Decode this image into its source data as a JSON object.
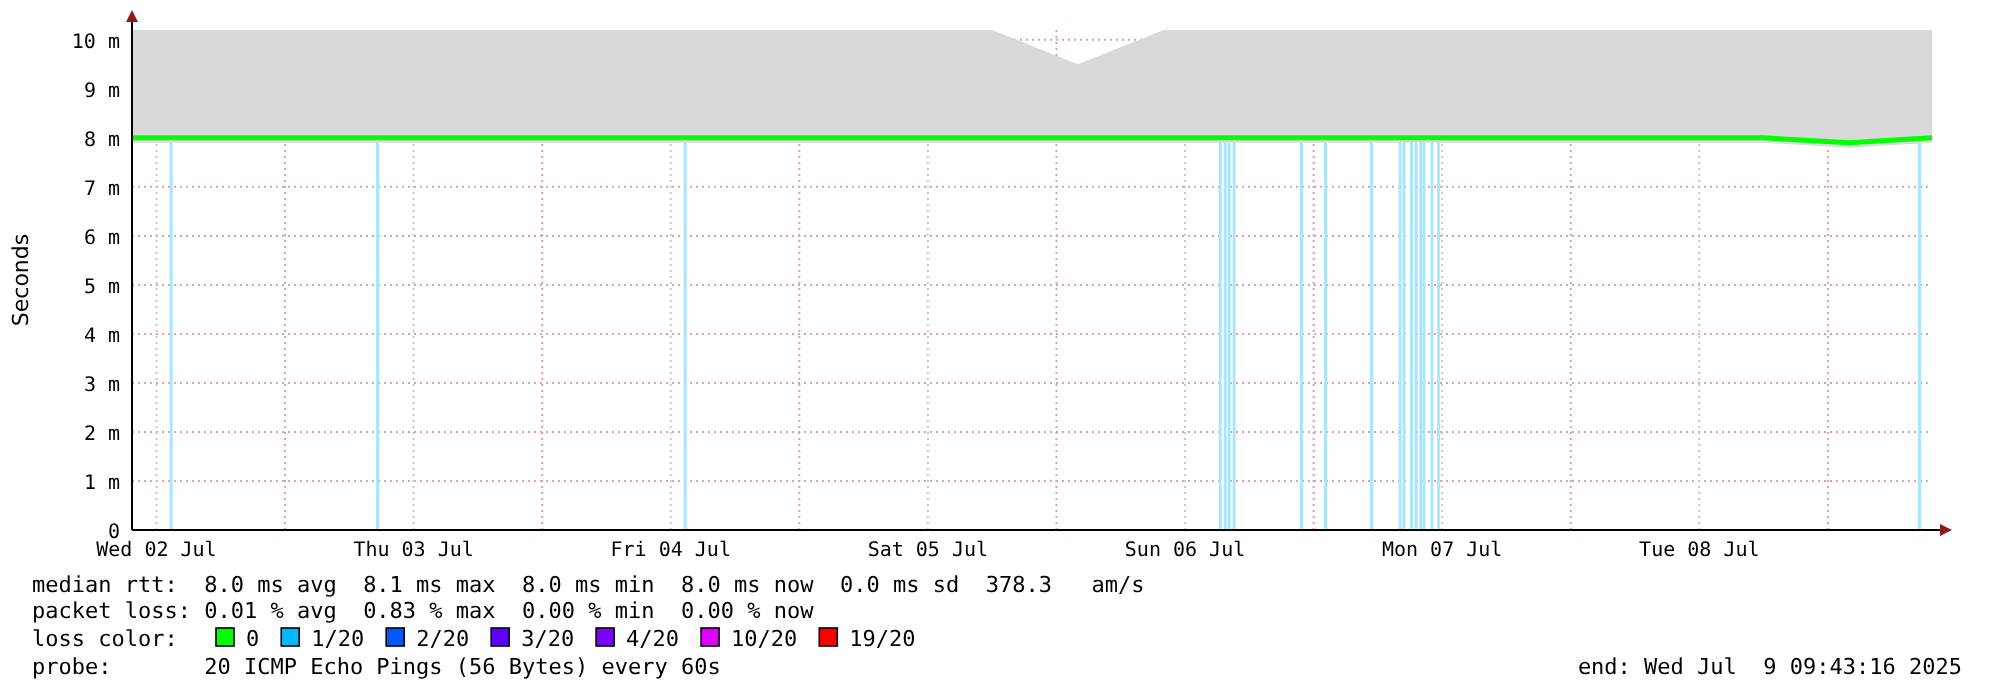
{
  "chart_data": {
    "type": "line",
    "ylabel": "Seconds",
    "legend_title": "loss color:",
    "legend": "bottom",
    "grid": true,
    "xlim": [
      "2025-07-02T09:43",
      "2025-07-09T09:43"
    ],
    "xticks": [
      {
        "value": "2025-07-02T12:00",
        "label": "Wed 02 Jul"
      },
      {
        "value": "2025-07-03T00:00",
        "label": null
      },
      {
        "value": "2025-07-03T12:00",
        "label": "Thu 03 Jul"
      },
      {
        "value": "2025-07-04T00:00",
        "label": null
      },
      {
        "value": "2025-07-04T12:00",
        "label": "Fri 04 Jul"
      },
      {
        "value": "2025-07-05T00:00",
        "label": null
      },
      {
        "value": "2025-07-05T12:00",
        "label": "Sat 05 Jul"
      },
      {
        "value": "2025-07-06T00:00",
        "label": null
      },
      {
        "value": "2025-07-06T12:00",
        "label": "Sun 06 Jul"
      },
      {
        "value": "2025-07-07T00:00",
        "label": null
      },
      {
        "value": "2025-07-07T12:00",
        "label": "Mon 07 Jul"
      },
      {
        "value": "2025-07-08T00:00",
        "label": null
      },
      {
        "value": "2025-07-08T12:00",
        "label": "Tue 08 Jul"
      },
      {
        "value": "2025-07-09T00:00",
        "label": null
      }
    ],
    "ylim": [
      0,
      10.2
    ],
    "yticks": [
      0,
      {
        "value": 1,
        "label": "1 m"
      },
      {
        "value": 2,
        "label": "2 m"
      },
      {
        "value": 3,
        "label": "3 m"
      },
      {
        "value": 4,
        "label": "4 m"
      },
      {
        "value": 5,
        "label": "5 m"
      },
      {
        "value": 6,
        "label": "6 m"
      },
      {
        "value": 7,
        "label": "7 m"
      },
      {
        "value": 8,
        "label": "8 m"
      },
      {
        "value": 9,
        "label": "9 m"
      },
      {
        "value": 10,
        "label": "10 m"
      }
    ],
    "series": [
      {
        "name": "0",
        "color": "#00ff00",
        "x": [
          "2025-07-02T09:43",
          "2025-07-02T18:00",
          "2025-07-03T02:00",
          "2025-07-03T10:00",
          "2025-07-03T18:00",
          "2025-07-04T02:00",
          "2025-07-04T10:00",
          "2025-07-04T18:00",
          "2025-07-05T02:00",
          "2025-07-05T10:00",
          "2025-07-05T18:00",
          "2025-07-06T02:00",
          "2025-07-06T10:00",
          "2025-07-06T18:00",
          "2025-07-07T02:00",
          "2025-07-07T10:00",
          "2025-07-07T18:00",
          "2025-07-08T02:00",
          "2025-07-08T10:00",
          "2025-07-08T18:00",
          "2025-07-09T02:00",
          "2025-07-09T09:43"
        ],
        "values": [
          8,
          8,
          8,
          8,
          8,
          8,
          8,
          8,
          8,
          8,
          8,
          8,
          8,
          8,
          8,
          8,
          8,
          8,
          8,
          8,
          7.9,
          8
        ],
        "lower": [
          7.9,
          7.9,
          7.9,
          7.9,
          7.9,
          7.9,
          7.9,
          7.9,
          7.9,
          7.9,
          7.9,
          7.9,
          7.9,
          7.9,
          7.9,
          7.9,
          7.9,
          7.9,
          7.9,
          7.9,
          7.8,
          7.9
        ],
        "upper": [
          10.2,
          10.2,
          10.2,
          10.2,
          10.2,
          10.2,
          10.2,
          10.2,
          10.2,
          10.2,
          10.2,
          9.5,
          10.2,
          10.2,
          10.2,
          10.2,
          10.2,
          10.2,
          10.2,
          10.2,
          10.2,
          10.2
        ]
      },
      {
        "name": "1/20",
        "color": "#00b8ff"
      },
      {
        "name": "2/20",
        "color": "#0059ff"
      },
      {
        "name": "3/20",
        "color": "#5e00ff"
      },
      {
        "name": "4/20",
        "color": "#7e00ff"
      },
      {
        "name": "10/20",
        "color": "#dd00ff"
      },
      {
        "name": "19/20",
        "color": "#ff0000"
      }
    ],
    "ref_lines": [
      {
        "axis": "x",
        "value": "2025-07-02T13:22",
        "color": "#a8e6ff"
      },
      {
        "axis": "x",
        "value": "2025-07-03T08:38",
        "color": "#a8e6ff"
      },
      {
        "axis": "x",
        "value": "2025-07-04T13:21",
        "color": "#a8e6ff"
      },
      {
        "axis": "x",
        "value": "2025-07-06T15:17",
        "color": "#a8e6ff"
      },
      {
        "axis": "x",
        "value": "2025-07-06T15:45",
        "color": "#a8e6ff"
      },
      {
        "axis": "x",
        "value": "2025-07-06T16:07",
        "color": "#a8e6ff"
      },
      {
        "axis": "x",
        "value": "2025-07-06T16:35",
        "color": "#a8e6ff"
      },
      {
        "axis": "x",
        "value": "2025-07-06T22:52",
        "color": "#a8e6ff"
      },
      {
        "axis": "x",
        "value": "2025-07-07T01:07",
        "color": "#a8e6ff"
      },
      {
        "axis": "x",
        "value": "2025-07-07T05:24",
        "color": "#a8e6ff"
      },
      {
        "axis": "x",
        "value": "2025-07-07T08:04",
        "color": "#a8e6ff"
      },
      {
        "axis": "x",
        "value": "2025-07-07T08:26",
        "color": "#a8e6ff"
      },
      {
        "axis": "x",
        "value": "2025-07-07T09:08",
        "color": "#a8e6ff"
      },
      {
        "axis": "x",
        "value": "2025-07-07T09:34",
        "color": "#a8e6ff"
      },
      {
        "axis": "x",
        "value": "2025-07-07T10:00",
        "color": "#a8e6ff"
      },
      {
        "axis": "x",
        "value": "2025-07-07T10:18",
        "color": "#a8e6ff"
      },
      {
        "axis": "x",
        "value": "2025-07-07T11:03",
        "color": "#a8e6ff"
      },
      {
        "axis": "x",
        "value": "2025-07-07T11:40",
        "color": "#a8e6ff"
      },
      {
        "axis": "x",
        "value": "2025-07-09T08:33",
        "color": "#a8e6ff"
      }
    ],
    "annotations": [
      "median rtt:  8.0 ms avg  8.1 ms max  8.0 ms min  8.0 ms now  0.0 ms sd  378.3   am/s",
      "packet loss: 0.01 % avg  0.83 % max  0.00 % min  0.00 % now",
      "probe:       20 ICMP Echo Pings (56 Bytes) every 60s",
      "end: Wed Jul  9 09:43:16 2025"
    ]
  }
}
